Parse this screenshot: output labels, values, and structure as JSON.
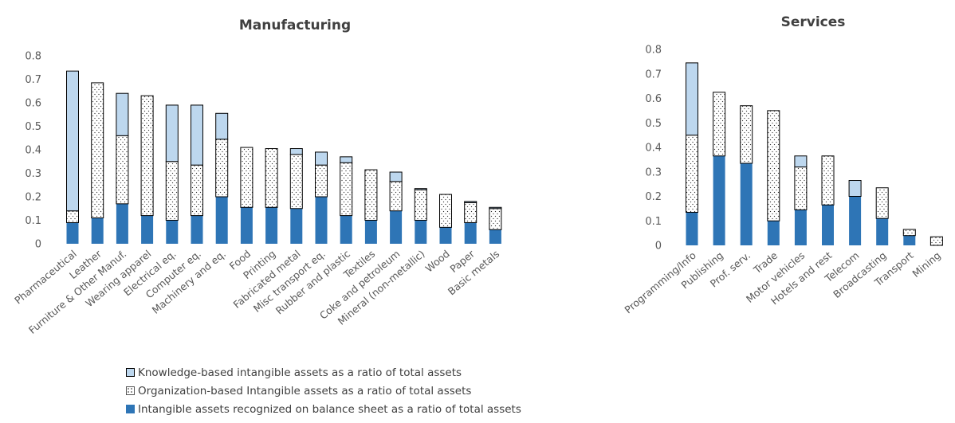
{
  "legend": {
    "knowledge": "Knowledge-based intangible assets as a ratio of total assets",
    "organization": "Organization-based Intangible assets as a ratio of total assets",
    "balance": "Intangible assets recognized on balance sheet as a ratio of total assets"
  },
  "colors": {
    "balance": "#2e75b6",
    "knowledge": "#bdd7ee",
    "organization": "#ffffff",
    "axis_text": "#595959",
    "title": "#404040"
  },
  "chart_data": [
    {
      "type": "bar",
      "stacked": true,
      "title": "Manufacturing",
      "ylim": [
        0,
        0.8
      ],
      "yticks": [
        "0",
        "0.1",
        "0.2",
        "0.3",
        "0.4",
        "0.5",
        "0.6",
        "0.7",
        "0.8"
      ],
      "categories": [
        "Pharmaceutical",
        "Leather",
        "Furniture & Other Manuf.",
        "Wearing apparel",
        "Electrical eq.",
        "Computer eq.",
        "Machinery and eq.",
        "Food",
        "Printing",
        "Fabricated metal",
        "Misc transport eq.",
        "Rubber and plastic",
        "Textiles",
        "Coke and petroleum",
        "Mineral (non-metallic)",
        "Wood",
        "Paper",
        "Basic metals"
      ],
      "series": [
        {
          "name": "Intangible assets recognized on balance sheet as a ratio of total assets",
          "values": [
            0.09,
            0.11,
            0.17,
            0.12,
            0.1,
            0.12,
            0.2,
            0.155,
            0.155,
            0.15,
            0.2,
            0.12,
            0.1,
            0.14,
            0.1,
            0.07,
            0.09,
            0.06
          ]
        },
        {
          "name": "Organization-based Intangible assets as a ratio of total assets",
          "values": [
            0.05,
            0.575,
            0.29,
            0.51,
            0.25,
            0.215,
            0.245,
            0.255,
            0.25,
            0.23,
            0.135,
            0.225,
            0.215,
            0.125,
            0.13,
            0.14,
            0.085,
            0.09
          ]
        },
        {
          "name": "Knowledge-based intangible assets as a ratio of total assets",
          "values": [
            0.595,
            0.0,
            0.18,
            0.0,
            0.24,
            0.255,
            0.11,
            0.0,
            0.0,
            0.025,
            0.055,
            0.025,
            0.0,
            0.04,
            0.005,
            0.0,
            0.005,
            0.005
          ]
        }
      ]
    },
    {
      "type": "bar",
      "stacked": true,
      "title": "Services",
      "ylim": [
        0,
        0.8
      ],
      "yticks": [
        "0",
        "0.1",
        "0.2",
        "0.3",
        "0.4",
        "0.5",
        "0.6",
        "0.7",
        "0.8"
      ],
      "categories": [
        "Programming/Info",
        "Publishing",
        "Prof. serv.",
        "Trade",
        "Motor vehicles",
        "Hotels and rest",
        "Telecom",
        "Broadcasting",
        "Transport",
        "Mining"
      ],
      "series": [
        {
          "name": "Intangible assets recognized on balance sheet as a ratio of total assets",
          "values": [
            0.135,
            0.365,
            0.335,
            0.1,
            0.145,
            0.165,
            0.2,
            0.11,
            0.04,
            0.0
          ]
        },
        {
          "name": "Organization-based Intangible assets as a ratio of total assets",
          "values": [
            0.315,
            0.26,
            0.235,
            0.45,
            0.175,
            0.2,
            0.0,
            0.125,
            0.025,
            0.035
          ]
        },
        {
          "name": "Knowledge-based intangible assets as a ratio of total assets",
          "values": [
            0.295,
            0.0,
            0.0,
            0.0,
            0.045,
            0.0,
            0.065,
            0.0,
            0.0,
            0.0
          ]
        }
      ]
    }
  ]
}
